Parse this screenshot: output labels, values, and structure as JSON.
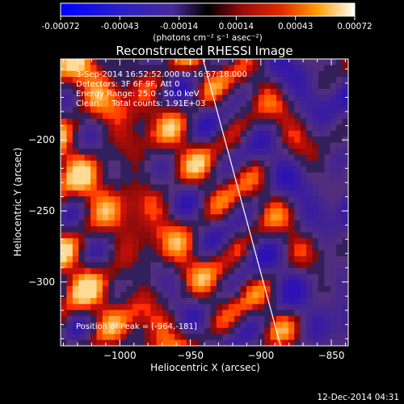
{
  "colorbar": {
    "ticks": [
      "-0.00072",
      "-0.00043",
      "-0.00014",
      "0.00014",
      "0.00043",
      "0.00072"
    ],
    "unit_label": "(photons cm⁻² s⁻¹ asec⁻²)",
    "range": [
      -0.00072,
      0.00072
    ]
  },
  "chart_data": {
    "type": "heatmap",
    "title": "Reconstructed RHESSI Image",
    "xlabel": "Heliocentric X (arcsec)",
    "ylabel": "Heliocentric Y (arcsec)",
    "xlim": [
      -1042,
      -838
    ],
    "ylim": [
      -345,
      -143
    ],
    "x_ticks": [
      -1000,
      -950,
      -900,
      -850
    ],
    "x_tick_labels": [
      "−1000",
      "−950",
      "−900",
      "−850"
    ],
    "y_ticks": [
      -200,
      -250,
      -300
    ],
    "y_tick_labels": [
      "−200",
      "−250",
      "−300"
    ],
    "annotations": [
      "3-Sep-2014 16:52:52.000 to 16:57:18.000",
      "Detectors: 3F 6F 9F, Att 0",
      "Energy Range: 25.0 - 50.0 keV",
      "Clean     Total counts: 1.91E+03"
    ],
    "peak_label": "Position of Peak = [-964,-181]",
    "peak_position": [
      -964,
      -181
    ],
    "limb_line": {
      "x": [
        -941,
        -886
      ],
      "y": [
        -143,
        -345
      ]
    },
    "colormap": [
      "#0000ff",
      "#3a2a9e",
      "#5a3a8a",
      "#000000",
      "#b01010",
      "#e02a00",
      "#ff7a00",
      "#ffc020",
      "#ffffff"
    ],
    "grid": false
  },
  "footer": {
    "date": "12-Dec-2014 04:31"
  }
}
